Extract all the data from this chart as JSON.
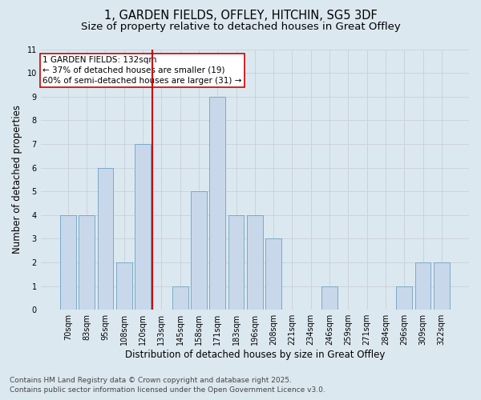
{
  "title_line1": "1, GARDEN FIELDS, OFFLEY, HITCHIN, SG5 3DF",
  "title_line2": "Size of property relative to detached houses in Great Offley",
  "xlabel": "Distribution of detached houses by size in Great Offley",
  "ylabel": "Number of detached properties",
  "categories": [
    "70sqm",
    "83sqm",
    "95sqm",
    "108sqm",
    "120sqm",
    "133sqm",
    "145sqm",
    "158sqm",
    "171sqm",
    "183sqm",
    "196sqm",
    "208sqm",
    "221sqm",
    "234sqm",
    "246sqm",
    "259sqm",
    "271sqm",
    "284sqm",
    "296sqm",
    "309sqm",
    "322sqm"
  ],
  "values": [
    4,
    4,
    6,
    2,
    7,
    0,
    1,
    5,
    9,
    4,
    4,
    3,
    0,
    0,
    1,
    0,
    0,
    0,
    1,
    2,
    2
  ],
  "bar_color": "#c8d8ea",
  "bar_edge_color": "#7aaac8",
  "grid_color": "#c8d0d8",
  "background_color": "#dce8f0",
  "vline_x_index": 5,
  "vline_color": "#cc0000",
  "annotation_text": "1 GARDEN FIELDS: 132sqm\n← 37% of detached houses are smaller (19)\n60% of semi-detached houses are larger (31) →",
  "annotation_box_color": "#ffffff",
  "annotation_box_edge": "#cc0000",
  "ylim": [
    0,
    11
  ],
  "yticks": [
    0,
    1,
    2,
    3,
    4,
    5,
    6,
    7,
    8,
    9,
    10,
    11
  ],
  "footer_line1": "Contains HM Land Registry data © Crown copyright and database right 2025.",
  "footer_line2": "Contains public sector information licensed under the Open Government Licence v3.0.",
  "title_fontsize": 10.5,
  "subtitle_fontsize": 9.5,
  "axis_label_fontsize": 8.5,
  "tick_fontsize": 7,
  "annotation_fontsize": 7.5,
  "footer_fontsize": 6.5
}
